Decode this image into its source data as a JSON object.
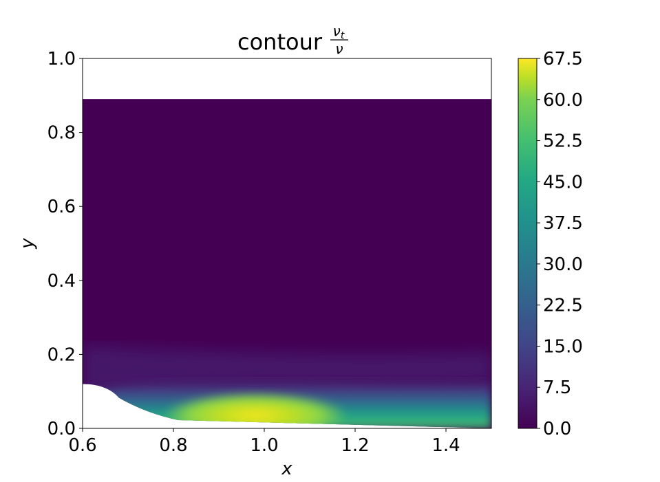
{
  "chart_data": {
    "type": "contour",
    "title": "contour",
    "title_math": {
      "numerator": "νt",
      "numerator_base": "ν",
      "numerator_sub": "t",
      "denominator": "ν"
    },
    "xlabel": "x",
    "ylabel": "y",
    "xlim": [
      0.6,
      1.5
    ],
    "ylim": [
      0.0,
      1.0
    ],
    "x_ticks": [
      "0.6",
      "0.8",
      "1.0",
      "1.2",
      "1.4"
    ],
    "y_ticks": [
      "0.0",
      "0.2",
      "0.4",
      "0.6",
      "0.8",
      "1.0"
    ],
    "colorbar": {
      "range": [
        0.0,
        67.5
      ],
      "colormap": "viridis",
      "ticks": [
        "0.0",
        "7.5",
        "15.0",
        "22.5",
        "30.0",
        "37.5",
        "45.0",
        "52.5",
        "60.0",
        "67.5"
      ]
    },
    "domain": {
      "top_y": 0.89,
      "step_x": 0.6,
      "step_height": 0.12,
      "step_end_x": 0.81
    },
    "peak": {
      "x": 0.98,
      "y": 0.035,
      "value": 67.5
    },
    "grid": false
  }
}
